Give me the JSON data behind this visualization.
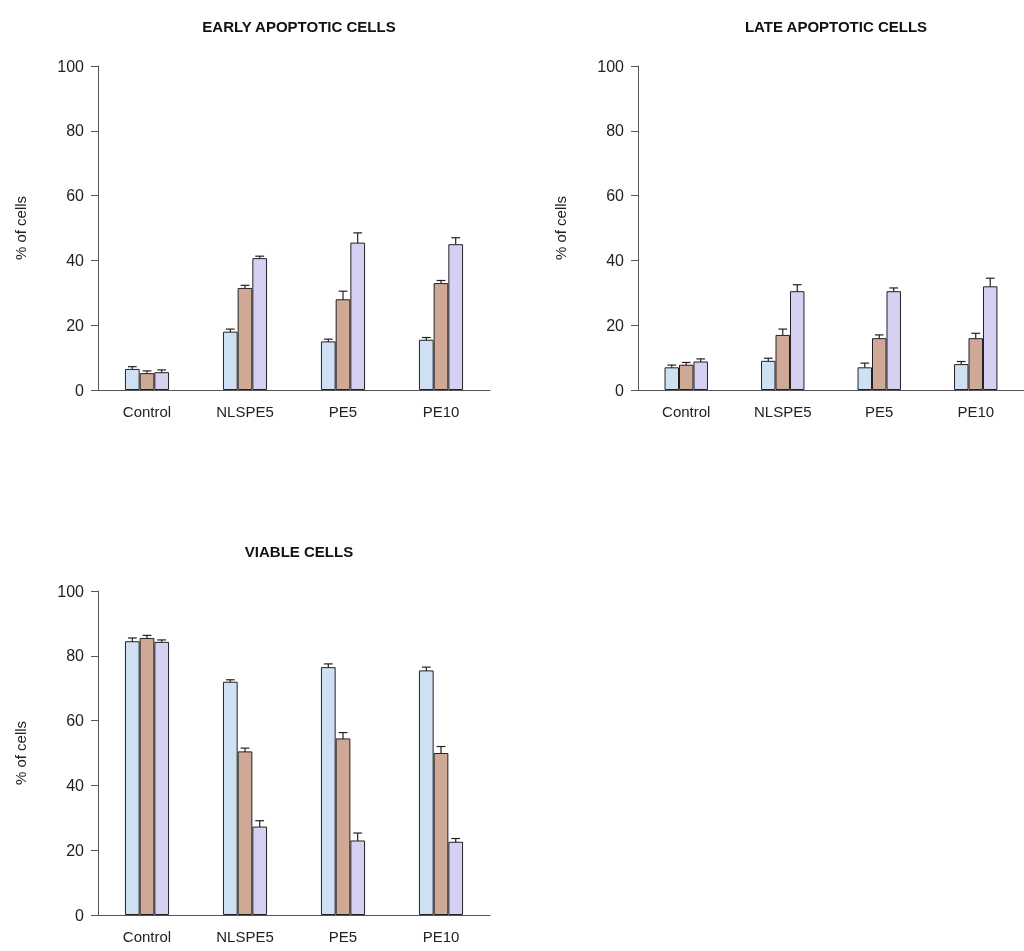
{
  "chart_data": [
    {
      "type": "bar",
      "title": "EARLY APOPTOTIC CELLS",
      "ylabel": "% of cells",
      "categories": [
        "Control",
        "NLSPE5",
        "PE5",
        "PE10"
      ],
      "ylim": [
        0,
        100
      ],
      "yticks": [
        0,
        20,
        40,
        60,
        80,
        100
      ],
      "series": [
        {
          "color": "#cfe0f3",
          "values": [
            6.5,
            18,
            15,
            15.5
          ],
          "errors": [
            0.7,
            0.8,
            0.7,
            0.7
          ]
        },
        {
          "color": "#cfa896",
          "values": [
            5.2,
            31.5,
            28,
            33
          ],
          "errors": [
            0.7,
            0.8,
            2.5,
            0.8
          ]
        },
        {
          "color": "#d6d0f3",
          "values": [
            5.5,
            40.7,
            45.5,
            45
          ],
          "errors": [
            0.7,
            0.6,
            3,
            2
          ]
        }
      ]
    },
    {
      "type": "bar",
      "title": "LATE APOPTOTIC CELLS",
      "ylabel": "% of cells",
      "categories": [
        "Control",
        "NLSPE5",
        "PE5",
        "PE10"
      ],
      "ylim": [
        0,
        100
      ],
      "yticks": [
        0,
        20,
        40,
        60,
        80,
        100
      ],
      "series": [
        {
          "color": "#cfe0f3",
          "values": [
            7,
            9,
            7,
            8
          ],
          "errors": [
            0.7,
            0.8,
            1.3,
            0.8
          ]
        },
        {
          "color": "#cfa896",
          "values": [
            7.8,
            17,
            16,
            16
          ],
          "errors": [
            0.7,
            1.8,
            1,
            1.5
          ]
        },
        {
          "color": "#d6d0f3",
          "values": [
            8.8,
            30.5,
            30.5,
            32
          ],
          "errors": [
            0.8,
            2,
            1,
            2.5
          ]
        }
      ]
    },
    {
      "type": "bar",
      "title": "VIABLE CELLS",
      "ylabel": "% of cells",
      "categories": [
        "Control",
        "NLSPE5",
        "PE5",
        "PE10"
      ],
      "ylim": [
        0,
        100
      ],
      "yticks": [
        0,
        20,
        40,
        60,
        80,
        100
      ],
      "series": [
        {
          "color": "#cfe0f3",
          "values": [
            84.5,
            72,
            76.5,
            75.5
          ],
          "errors": [
            1,
            0.6,
            1,
            1
          ]
        },
        {
          "color": "#cfa896",
          "values": [
            85.5,
            50.5,
            54.5,
            50
          ],
          "errors": [
            0.8,
            1,
            1.8,
            2
          ]
        },
        {
          "color": "#d6d0f3",
          "values": [
            84.3,
            27.3,
            23,
            22.6
          ],
          "errors": [
            0.6,
            1.8,
            2.3,
            1
          ]
        }
      ]
    }
  ]
}
